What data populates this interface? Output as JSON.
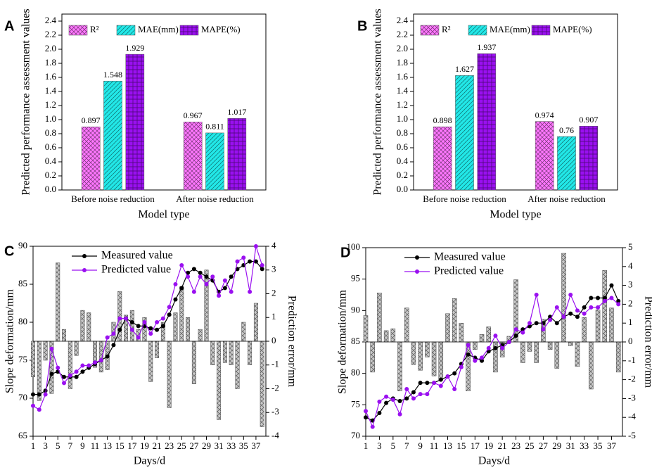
{
  "chart_data": [
    {
      "panel": "A",
      "type": "bar",
      "xlabel": "Model type",
      "ylabel": "Predicted performance assessment values",
      "categories": [
        "Before noise reduction",
        "After noise reduction"
      ],
      "series": [
        {
          "name": "R²",
          "color": "#ff77ff",
          "values": [
            0.897,
            0.967
          ]
        },
        {
          "name": "MAE(mm)",
          "color": "#22e8e8",
          "values": [
            1.548,
            0.811
          ]
        },
        {
          "name": "MAPE(%)",
          "color": "#9a10f0",
          "values": [
            1.929,
            1.017
          ]
        }
      ],
      "ylim": [
        0,
        2.5
      ],
      "yticks": [
        {
          "value": 0,
          "label": "0.0"
        },
        0.2,
        0.4,
        0.6,
        0.8,
        {
          "value": 1,
          "label": "1.0"
        },
        1.2,
        1.4,
        1.6,
        1.8,
        {
          "value": 2,
          "label": "2.0"
        },
        2.2,
        2.4
      ],
      "legend": "top"
    },
    {
      "panel": "B",
      "type": "bar",
      "xlabel": "Model type",
      "ylabel": "Predicted performance assessment values",
      "categories": [
        "Before noise reduction",
        "After noise reduction"
      ],
      "series": [
        {
          "name": "R²",
          "color": "#ff77ff",
          "values": [
            0.898,
            0.974
          ]
        },
        {
          "name": "MAE(mm)",
          "color": "#22e8e8",
          "values": [
            1.627,
            0.76
          ]
        },
        {
          "name": "MAPE(%)",
          "color": "#9a10f0",
          "values": [
            1.937,
            0.907
          ]
        }
      ],
      "ylim": [
        0,
        2.5
      ],
      "yticks": [
        {
          "value": 0,
          "label": "0.0"
        },
        0.2,
        0.4,
        0.6,
        0.8,
        {
          "value": 1,
          "label": "1.0"
        },
        1.2,
        1.4,
        1.6,
        1.8,
        {
          "value": 2,
          "label": "2.0"
        },
        2.2,
        2.4
      ],
      "legend": "top"
    },
    {
      "panel": "C",
      "type": "combo",
      "xlabel": "Days/d",
      "ylabel": "Slope deformation/mm",
      "y2label": "Prediction error/mm",
      "x": [
        1,
        2,
        3,
        4,
        5,
        6,
        7,
        8,
        9,
        10,
        11,
        12,
        13,
        14,
        15,
        16,
        17,
        18,
        19,
        20,
        21,
        22,
        23,
        24,
        25,
        26,
        27,
        28,
        29,
        30,
        31,
        32,
        33,
        34,
        35,
        36,
        37,
        38
      ],
      "series": [
        {
          "name": "Measured value",
          "color": "#000000",
          "values": [
            70.5,
            70.5,
            71,
            73.2,
            73.5,
            72.8,
            72.8,
            72.8,
            73.5,
            74,
            74.5,
            75,
            75.5,
            77,
            79,
            80.5,
            80,
            79.5,
            79.5,
            79.2,
            79,
            79.5,
            81,
            83,
            84.5,
            86.5,
            87,
            86.5,
            86,
            85.5,
            84,
            84.5,
            86,
            87,
            87.5,
            88,
            88,
            87
          ]
        },
        {
          "name": "Predicted value",
          "color": "#9a10f0",
          "values": [
            69,
            68.5,
            70.5,
            76.5,
            74,
            72,
            73,
            73.5,
            74.3,
            74.3,
            74.7,
            75,
            78,
            78.5,
            80.5,
            80.5,
            79,
            78,
            80,
            78.5,
            80,
            80.5,
            82,
            85,
            87.5,
            86,
            84,
            86,
            85,
            86,
            83.5,
            85.5,
            84,
            88,
            88.5,
            84,
            90,
            87.5
          ]
        },
        {
          "axis": "y2",
          "color": "#c8c8c8",
          "values": [
            -1.5,
            -2.5,
            -0.8,
            -2.2,
            3.3,
            0.5,
            -2,
            -0.6,
            1.3,
            1.2,
            -1.1,
            -1.3,
            -1.2,
            0.8,
            2.1,
            1.1,
            1.3,
            0.5,
            1,
            -1.7,
            -0.7,
            0.8,
            -2.8,
            1.2,
            2.3,
            1,
            -1.8,
            0.5,
            3,
            -1,
            -3.3,
            -0.9,
            -1,
            -2,
            0.8,
            -1,
            1.6,
            -3.6
          ]
        }
      ],
      "xlim": [
        1,
        38.6
      ],
      "xticks": [
        1,
        3,
        5,
        7,
        9,
        11,
        13,
        15,
        17,
        19,
        21,
        23,
        25,
        27,
        29,
        31,
        33,
        35,
        37
      ],
      "ylim": [
        65,
        90
      ],
      "yticks": [
        65,
        70,
        75,
        80,
        85,
        90
      ],
      "y2lim": [
        -4,
        4
      ],
      "y2ticks": [
        -4,
        -3,
        -2,
        -1,
        0,
        1,
        2,
        3,
        4
      ],
      "legend": "upper left"
    },
    {
      "panel": "D",
      "type": "combo",
      "xlabel": "Days/d",
      "ylabel": "Slope deformation/mm",
      "y2label": "Prediction error/mm",
      "x": [
        1,
        2,
        3,
        4,
        5,
        6,
        7,
        8,
        9,
        10,
        11,
        12,
        13,
        14,
        15,
        16,
        17,
        18,
        19,
        20,
        21,
        22,
        23,
        24,
        25,
        26,
        27,
        28,
        29,
        30,
        31,
        32,
        33,
        34,
        35,
        36,
        37,
        38
      ],
      "series": [
        {
          "name": "Measured value",
          "color": "#000000",
          "values": [
            73,
            72.5,
            73.7,
            75.3,
            76,
            75.6,
            76,
            77,
            78.5,
            78.5,
            78.5,
            79,
            79.5,
            80,
            81.5,
            83,
            82.5,
            82,
            83.5,
            84,
            84.5,
            85,
            86,
            87,
            87.5,
            88,
            88,
            89,
            88,
            89,
            89.5,
            89,
            90.5,
            92,
            92,
            92,
            94,
            91.5
          ]
        },
        {
          "name": "Predicted value",
          "color": "#9a10f0",
          "values": [
            74,
            71.5,
            75.5,
            76.3,
            75.8,
            73.5,
            77.5,
            76,
            76.7,
            76.7,
            78.5,
            78,
            79.5,
            77.5,
            81,
            84.5,
            82,
            82.5,
            84,
            86,
            84,
            85,
            87,
            86.5,
            88,
            92.5,
            87,
            88.5,
            90.5,
            89,
            92.5,
            90,
            89.5,
            90.5,
            90.5,
            91.5,
            92,
            91
          ]
        },
        {
          "axis": "y2",
          "color": "#c8c8c8",
          "values": [
            1.4,
            -1.6,
            2.6,
            0.6,
            0.7,
            -2.6,
            1.8,
            -1.2,
            -1.5,
            -0.8,
            -1.8,
            -2,
            1.5,
            2.3,
            1,
            -2.6,
            -0.4,
            0.4,
            0.8,
            -1.6,
            -0.8,
            0.3,
            3.3,
            -1.1,
            -0.5,
            -1.1,
            1.2,
            -0.4,
            -1.4,
            4.7,
            -0.2,
            -1.3,
            1.3,
            -2.5,
            1.7,
            3.8,
            1.8,
            -1.6
          ]
        }
      ],
      "xlim": [
        1,
        38.6
      ],
      "xticks": [
        1,
        3,
        5,
        7,
        9,
        11,
        13,
        15,
        17,
        19,
        21,
        23,
        25,
        27,
        29,
        31,
        33,
        35,
        37
      ],
      "ylim": [
        70,
        100
      ],
      "yticks": [
        70,
        75,
        80,
        85,
        90,
        95,
        100
      ],
      "y2lim": [
        -5,
        5
      ],
      "y2ticks": [
        -5,
        -4,
        -3,
        -2,
        -1,
        0,
        1,
        2,
        3,
        4,
        5
      ],
      "legend": "upper left"
    }
  ]
}
